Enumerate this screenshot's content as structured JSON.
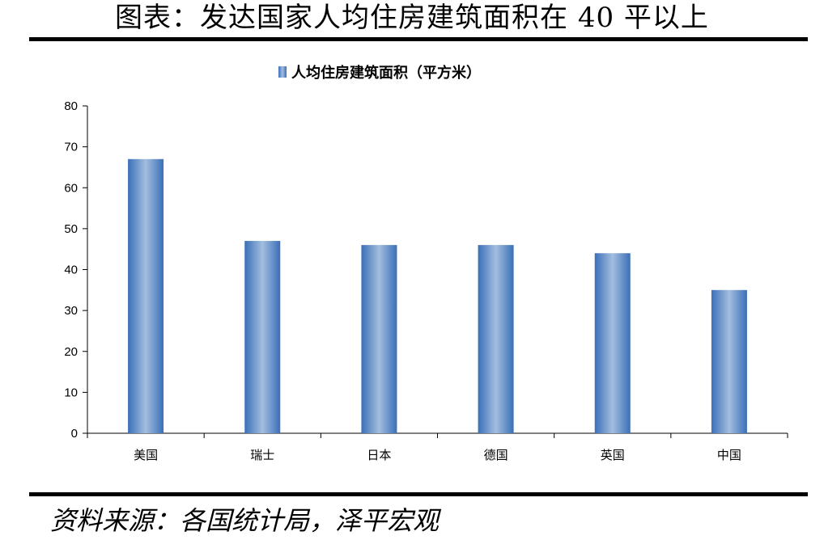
{
  "page": {
    "title": "图表：发达国家人均住房建筑面积在 40 平以上",
    "source": "资料来源：各国统计局，泽平宏观"
  },
  "chart_data": {
    "type": "bar",
    "categories": [
      "美国",
      "瑞士",
      "日本",
      "德国",
      "英国",
      "中国"
    ],
    "series": [
      {
        "name": "人均住房建筑面积（平方米）",
        "values": [
          67,
          47,
          46,
          46,
          44,
          35
        ],
        "color": "#4a7fc3"
      }
    ],
    "ylim": [
      0,
      80
    ],
    "yticks": [
      0,
      10,
      20,
      30,
      40,
      50,
      60,
      70,
      80
    ],
    "legend_position": "top-center",
    "grid": false
  }
}
